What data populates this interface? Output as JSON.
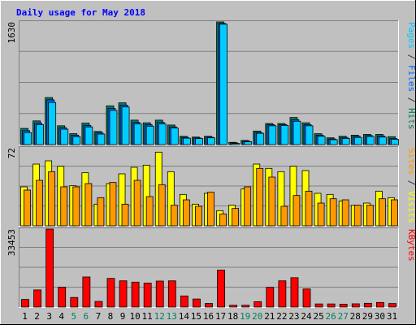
{
  "chart_data": {
    "type": "bar",
    "title": "Daily usage for May 2018",
    "categories": [
      "1",
      "2",
      "3",
      "4",
      "5",
      "6",
      "7",
      "8",
      "9",
      "10",
      "11",
      "12",
      "13",
      "14",
      "15",
      "16",
      "17",
      "18",
      "19",
      "20",
      "21",
      "22",
      "23",
      "24",
      "25",
      "26",
      "27",
      "28",
      "29",
      "30",
      "31"
    ],
    "weekend_days": [
      "5",
      "6",
      "12",
      "13",
      "19",
      "20",
      "26",
      "27"
    ],
    "panels": [
      {
        "id": "top",
        "ymax_label": "1630",
        "ymax": 1630,
        "series": [
          {
            "name": "Hits",
            "color": "#00805c",
            "values": [
              215,
              315,
              625,
              250,
              145,
              285,
              175,
              515,
              555,
              325,
              290,
              325,
              260,
              110,
              100,
              110,
              1630,
              30,
              55,
              180,
              280,
              280,
              360,
              290,
              145,
              90,
              110,
              125,
              135,
              135,
              105
            ]
          },
          {
            "name": "Files",
            "color": "#0066ff",
            "values": [
              185,
              285,
              595,
              225,
              125,
              255,
              155,
              480,
              525,
              295,
              265,
              295,
              235,
              95,
              88,
              98,
              1610,
              22,
              45,
              160,
              265,
              265,
              330,
              265,
              125,
              75,
              95,
              110,
              120,
              115,
              80
            ]
          },
          {
            "name": "Pages",
            "color": "#00ccff",
            "values": [
              160,
              265,
              560,
              205,
              105,
              235,
              140,
              455,
              500,
              275,
              245,
              275,
              220,
              85,
              80,
              90,
              1600,
              15,
              38,
              150,
              250,
              255,
              310,
              250,
              110,
              65,
              82,
              95,
              108,
              100,
              70
            ]
          }
        ]
      },
      {
        "id": "middle",
        "ymax_label": "72",
        "ymax": 72,
        "series": [
          {
            "name": "Visits",
            "color": "#ffff00",
            "values": [
              36,
              57,
              60,
              55,
              37,
              49,
              20,
              39,
              48,
              54,
              56,
              68,
              50,
              29,
              20,
              30,
              14,
              19,
              34,
              57,
              53,
              50,
              55,
              51,
              30,
              29,
              23,
              19,
              21,
              32,
              26
            ]
          },
          {
            "name": "Sites",
            "color": "#ff9900",
            "values": [
              33,
              42,
              50,
              36,
              36,
              39,
              26,
              40,
              20,
              42,
              27,
              38,
              19,
              24,
              18,
              31,
              11,
              16,
              36,
              53,
              45,
              18,
              28,
              32,
              21,
              25,
              24,
              19,
              19,
              25,
              24
            ]
          }
        ]
      },
      {
        "id": "bottom",
        "ymax_label": "33453",
        "ymax": 33453,
        "series": [
          {
            "name": "KBytes",
            "color": "#ff0000",
            "values": [
              3270,
              7350,
              33453,
              8560,
              4110,
              12910,
              2420,
              12300,
              11250,
              10700,
              10270,
              11150,
              11250,
              4770,
              3460,
              1560,
              15850,
              780,
              780,
              2310,
              8460,
              11250,
              12600,
              7770,
              1350,
              1350,
              1240,
              1400,
              1630,
              1980,
              1520
            ]
          }
        ]
      }
    ],
    "right_labels": [
      {
        "panel": "top",
        "parts": [
          {
            "text": "Pages",
            "color": "#00ccff"
          },
          {
            "text": " / ",
            "color": "#333333"
          },
          {
            "text": "Files",
            "color": "#0066ff"
          },
          {
            "text": " / ",
            "color": "#333333"
          },
          {
            "text": "Hits",
            "color": "#00805c"
          }
        ]
      },
      {
        "panel": "middle",
        "parts": [
          {
            "text": "Sites",
            "color": "#ff9900"
          },
          {
            "text": " / ",
            "color": "#333333"
          },
          {
            "text": "Visits",
            "color": "#ffff00"
          }
        ]
      },
      {
        "panel": "bottom",
        "parts": [
          {
            "text": "KBytes",
            "color": "#ff0000"
          }
        ]
      }
    ],
    "colors": {
      "background": "#c0c0c0",
      "plot": "#c0c0c0",
      "grid": "#808080",
      "title": "#0000ff",
      "weekday_label": "#000000",
      "weekend_label": "#00805c"
    },
    "grid": true,
    "legend": "right-vertical"
  }
}
